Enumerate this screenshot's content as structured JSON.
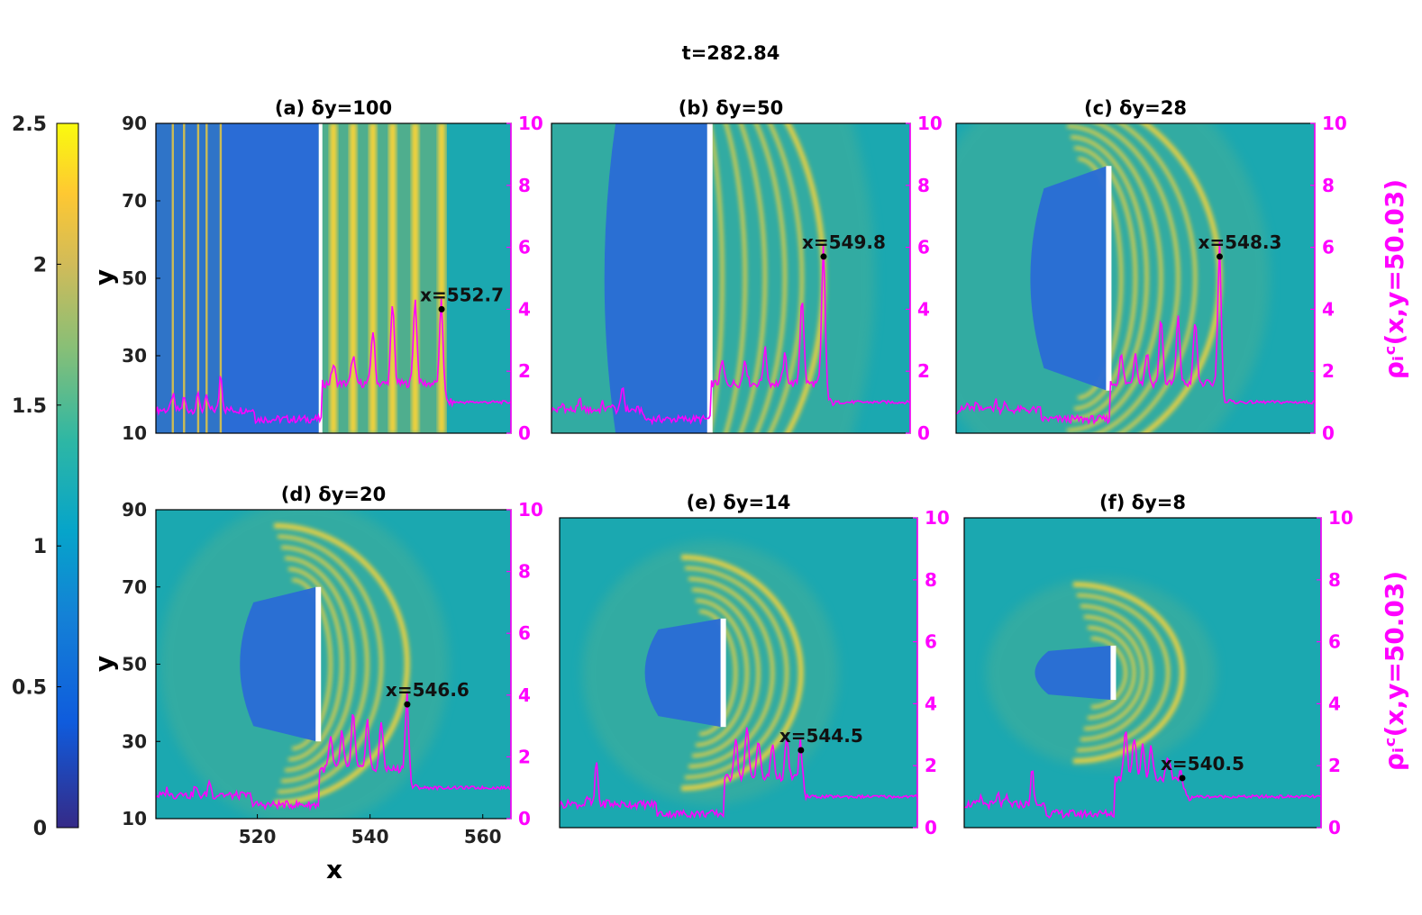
{
  "figure_title": "t=282.84",
  "colorbar": {
    "ticks": [
      "0",
      "0.5",
      "1",
      "1.5",
      "2",
      "2.5"
    ],
    "range": [
      0,
      2.5
    ],
    "colormap": "parula"
  },
  "colors": {
    "background": "#1ba8b0",
    "inner_blue": "#2a6cd6",
    "wave_yellow": "#f5d33a",
    "profile": "#ff00ff",
    "axis_right": "#ff00ff",
    "text": "#000000"
  },
  "axes_labels": {
    "x": "x",
    "y": "y",
    "right_top": "ρᵢᶜ(x,y=50.03)",
    "right_bottom": "ρᵢᶜ(x,y=50.03)"
  },
  "chart_data": [
    {
      "type": "heatmap",
      "title": "(a) δy=100",
      "dy": 100,
      "xlim": [
        502,
        565
      ],
      "ylim": [
        10,
        90
      ],
      "y2lim": [
        0,
        10
      ],
      "yticks": [
        "10",
        "30",
        "50",
        "70",
        "90"
      ],
      "y2ticks": [
        "0",
        "2",
        "4",
        "6",
        "8",
        "10"
      ],
      "xticks": [],
      "front_x": 552.7,
      "front_rho": 4.0,
      "annotation": "x=552.7",
      "peaks": [
        [
          533.5,
          1.8
        ],
        [
          537,
          2.1
        ],
        [
          540.5,
          2.9
        ],
        [
          544,
          3.7
        ],
        [
          548,
          3.9
        ],
        [
          552.7,
          4.0
        ]
      ],
      "upstream_peaks": [
        [
          505,
          1.3
        ],
        [
          507,
          1.2
        ],
        [
          509.5,
          1.3
        ],
        [
          511,
          1.2
        ],
        [
          513.5,
          2.0
        ]
      ]
    },
    {
      "type": "heatmap",
      "title": "(b) δy=50",
      "dy": 50,
      "xlim": [
        502,
        565
      ],
      "ylim": [
        10,
        90
      ],
      "y2lim": [
        0,
        10
      ],
      "yticks": [],
      "y2ticks": [
        "0",
        "2",
        "4",
        "6",
        "8",
        "10"
      ],
      "xticks": [],
      "front_x": 549.8,
      "front_rho": 5.7,
      "annotation": "x=549.8",
      "peaks": [
        [
          532,
          1.9
        ],
        [
          536,
          2.0
        ],
        [
          539.5,
          2.3
        ],
        [
          543,
          2.1
        ],
        [
          546,
          4.0
        ],
        [
          549.8,
          5.7
        ]
      ],
      "upstream_peaks": [
        [
          504,
          1.0
        ],
        [
          507,
          1.1
        ],
        [
          511,
          1.0
        ],
        [
          512.5,
          1.0
        ],
        [
          514.5,
          1.6
        ]
      ]
    },
    {
      "type": "heatmap",
      "title": "(c) δy=28",
      "dy": 28,
      "xlim": [
        502,
        565
      ],
      "ylim": [
        10,
        90
      ],
      "y2lim": [
        0,
        10
      ],
      "yticks": [],
      "y2ticks": [
        "0",
        "2",
        "4",
        "6",
        "8",
        "10"
      ],
      "xticks": [],
      "front_x": 548.3,
      "front_rho": 5.7,
      "annotation": "x=548.3",
      "peaks": [
        [
          531,
          2.1
        ],
        [
          533.5,
          2.2
        ],
        [
          535.5,
          2.2
        ],
        [
          538,
          3.3
        ],
        [
          541,
          3.3
        ],
        [
          544,
          3.2
        ],
        [
          548.3,
          5.7
        ]
      ],
      "upstream_peaks": [
        [
          504,
          1.0
        ],
        [
          505.5,
          1.0
        ],
        [
          507.5,
          1.0
        ],
        [
          509,
          1.1
        ],
        [
          510.5,
          1.0
        ]
      ]
    },
    {
      "type": "heatmap",
      "title": "(d) δy=20",
      "dy": 20,
      "xlim": [
        502,
        565
      ],
      "ylim": [
        10,
        90
      ],
      "y2lim": [
        0,
        10
      ],
      "yticks": [
        "10",
        "30",
        "50",
        "70",
        "90"
      ],
      "y2ticks": [
        "0",
        "2",
        "4",
        "6",
        "8",
        "10"
      ],
      "xticks": [
        "520",
        "540",
        "560"
      ],
      "front_x": 546.6,
      "front_rho": 3.7,
      "annotation": "x=546.6",
      "peaks": [
        [
          533,
          2.2
        ],
        [
          535,
          2.4
        ],
        [
          537,
          3.0
        ],
        [
          539.5,
          2.8
        ],
        [
          542,
          2.7
        ],
        [
          546.6,
          3.7
        ]
      ],
      "upstream_peaks": [
        [
          504,
          1.0
        ],
        [
          506.5,
          1.0
        ],
        [
          509,
          1.1
        ],
        [
          511.5,
          1.3
        ],
        [
          513.5,
          0.9
        ]
      ]
    },
    {
      "type": "heatmap",
      "title": "(e) δy=14",
      "dy": 14,
      "xlim": [
        502,
        565
      ],
      "ylim": [
        10,
        90
      ],
      "y2lim": [
        0,
        10
      ],
      "yticks": [],
      "y2ticks": [
        "0",
        "2",
        "4",
        "6",
        "8",
        "10"
      ],
      "xticks": [],
      "front_x": 544.5,
      "front_rho": 2.5,
      "annotation": "x=544.5",
      "peaks": [
        [
          533,
          2.5
        ],
        [
          535,
          2.8
        ],
        [
          537,
          2.4
        ],
        [
          539.5,
          2.3
        ],
        [
          542,
          2.4
        ],
        [
          544.5,
          2.5
        ]
      ],
      "upstream_peaks": [
        [
          504,
          0.9
        ],
        [
          507,
          1.0
        ],
        [
          508.5,
          2.2
        ],
        [
          510.5,
          0.9
        ],
        [
          515,
          0.8
        ]
      ]
    },
    {
      "type": "heatmap",
      "title": "(f) δy=8",
      "dy": 8,
      "xlim": [
        502,
        565
      ],
      "ylim": [
        10,
        90
      ],
      "y2lim": [
        0,
        10
      ],
      "yticks": [],
      "y2ticks": [
        "0",
        "2",
        "4",
        "6",
        "8",
        "10"
      ],
      "xticks": [],
      "front_x": 540.5,
      "front_rho": 1.6,
      "annotation": "x=540.5",
      "peaks": [
        [
          530.5,
          2.8
        ],
        [
          532,
          2.5
        ],
        [
          533.5,
          2.3
        ],
        [
          535,
          2.2
        ],
        [
          538,
          1.8
        ],
        [
          540.5,
          1.6
        ]
      ],
      "upstream_peaks": [
        [
          505,
          1.0
        ],
        [
          508,
          1.1
        ],
        [
          509.5,
          1.0
        ],
        [
          514,
          1.9
        ],
        [
          517,
          0.8
        ]
      ]
    }
  ]
}
